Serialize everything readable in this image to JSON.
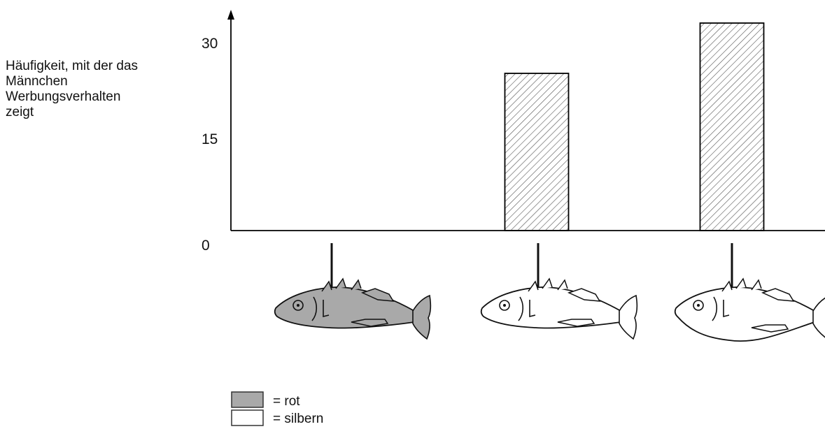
{
  "chart_data": {
    "type": "bar",
    "ylabel": "Häufigkeit, mit der das Männchen Werbungsverhalten zeigt",
    "ylabel_lines": [
      "Häufigkeit, mit der das",
      "Männchen",
      "Werbungsverhalten",
      "zeigt"
    ],
    "yticks": [
      "0",
      "15",
      "30"
    ],
    "ylim": [
      0,
      30
    ],
    "categories": [
      "rot, schlanke Fischform",
      "silbern, schlanke Fischform",
      "silbern, bauchige Fischform"
    ],
    "values": [
      0,
      25,
      33
    ],
    "fish_colors": [
      "#a9a9a9",
      "#ffffff",
      "#ffffff"
    ],
    "bar_pattern": "diagonal-hatch",
    "grid": false
  },
  "legend": {
    "items": [
      {
        "label": "= rot",
        "color": "#a9a9a9"
      },
      {
        "label": "= silbern",
        "color": "#ffffff"
      }
    ]
  }
}
